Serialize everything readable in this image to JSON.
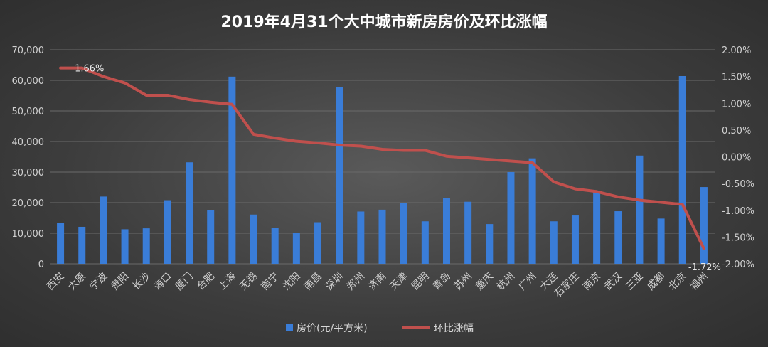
{
  "chart_data": {
    "type": "bar+line",
    "title": "2019年4月31个大中城市新房房价及环比涨幅",
    "categories": [
      "西安",
      "太原",
      "宁波",
      "贵阳",
      "长沙",
      "海口",
      "厦门",
      "合肥",
      "上海",
      "无锡",
      "南宁",
      "沈阳",
      "南昌",
      "深圳",
      "郑州",
      "济南",
      "天津",
      "昆明",
      "青岛",
      "苏州",
      "重庆",
      "杭州",
      "广州",
      "大连",
      "石家庄",
      "南京",
      "武汉",
      "三亚",
      "成都",
      "北京",
      "福州"
    ],
    "series": [
      {
        "name": "房价(元/平方米)",
        "type": "bar",
        "axis": "left",
        "color": "#3a7dd8",
        "values": [
          13300,
          12100,
          22000,
          11300,
          11600,
          20800,
          33200,
          17600,
          61200,
          16100,
          11800,
          10100,
          13600,
          57800,
          17100,
          17700,
          20000,
          13900,
          21500,
          20300,
          13000,
          30000,
          34500,
          13900,
          15800,
          23600,
          17200,
          35400,
          14800,
          61400,
          25100
        ]
      },
      {
        "name": "环比涨幅",
        "type": "line",
        "axis": "right",
        "color": "#c0504d",
        "values": [
          1.66,
          1.66,
          1.5,
          1.38,
          1.15,
          1.15,
          1.07,
          1.02,
          0.98,
          0.42,
          0.35,
          0.29,
          0.26,
          0.22,
          0.2,
          0.14,
          0.12,
          0.12,
          0.01,
          -0.02,
          -0.05,
          -0.08,
          -0.11,
          -0.47,
          -0.6,
          -0.65,
          -0.75,
          -0.81,
          -0.85,
          -0.89,
          -1.72
        ]
      }
    ],
    "y_left": {
      "min": 0,
      "max": 70000,
      "step": 10000,
      "tick_labels": [
        "0",
        "10,000",
        "20,000",
        "30,000",
        "40,000",
        "50,000",
        "60,000",
        "70,000"
      ]
    },
    "y_right": {
      "min": -2.0,
      "max": 2.0,
      "step": 0.5,
      "tick_labels": [
        "-2.00%",
        "-1.50%",
        "-1.00%",
        "-0.50%",
        "0.00%",
        "0.50%",
        "1.00%",
        "1.50%",
        "2.00%"
      ]
    },
    "data_labels": [
      {
        "series": 1,
        "index": 0,
        "text": "1.66%"
      },
      {
        "series": 1,
        "index": 30,
        "text": "-1.72%"
      }
    ],
    "grid": true,
    "legend": "bottom"
  }
}
